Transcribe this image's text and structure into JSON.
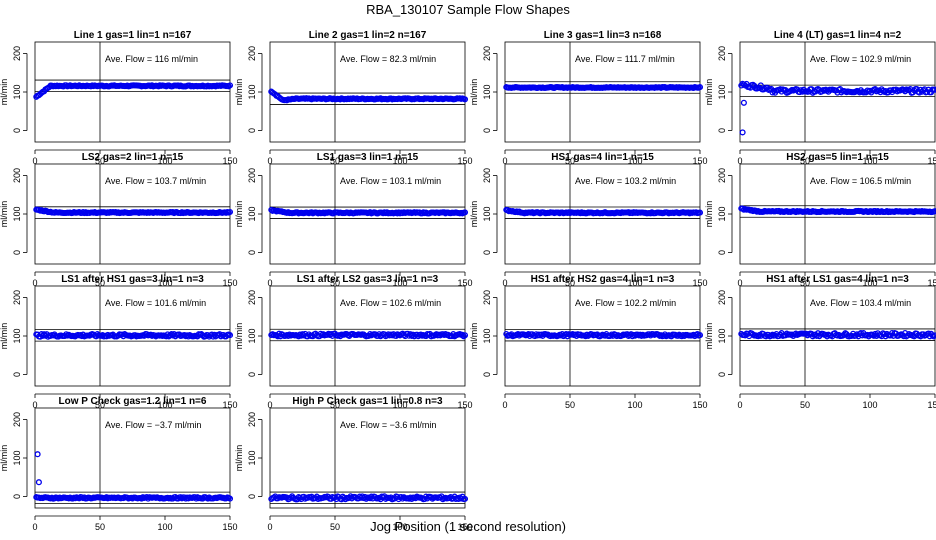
{
  "title": "RBA_130107  Sample Flow Shapes",
  "footer": "Jog Position (1 second resolution)",
  "colors": {
    "points": "#0000ee",
    "axis": "#000000"
  },
  "chart_data": {
    "type": "scatter",
    "xlim": [
      0,
      150
    ],
    "ylim": [
      -30,
      230
    ],
    "x_ticks": [
      0,
      50,
      100,
      150
    ],
    "y_ticks": [
      0,
      100,
      200
    ],
    "ylabel": "ml/min",
    "vline_x": 50,
    "band": 15,
    "panels": [
      {
        "title": "Line 1 gas=1 lin=1 n=167",
        "avg": 116,
        "label": "Ave. Flow =  116  ml/min",
        "shape": "rise",
        "start": 85,
        "noise": 1.5
      },
      {
        "title": "Line 2 gas=1 lin=2 n=167",
        "avg": 82.3,
        "label": "Ave. Flow =  82.3  ml/min",
        "shape": "dip",
        "start": 105,
        "noise": 1.5
      },
      {
        "title": "Line 3 gas=1 lin=3 n=168",
        "avg": 111.7,
        "label": "Ave. Flow =  111.7  ml/min",
        "shape": "flat",
        "noise": 1.2
      },
      {
        "title": "Line 4 (LT) gas=1 lin=4 n=2",
        "avg": 102.9,
        "label": "Ave. Flow =  102.9  ml/min",
        "shape": "spike",
        "outliers": [
          [
            2,
            -5
          ],
          [
            3,
            72
          ]
        ],
        "start": 120,
        "noise": 5
      },
      {
        "title": "LS2 gas=2 lin=1 n=15",
        "avg": 103.7,
        "label": "Ave. Flow =  103.7  ml/min",
        "shape": "settle",
        "start": 112,
        "noise": 1.5
      },
      {
        "title": "LS1 gas=3 lin=1 n=15",
        "avg": 103.1,
        "label": "Ave. Flow =  103.1  ml/min",
        "shape": "settle",
        "start": 110,
        "noise": 1.5
      },
      {
        "title": "HS1 gas=4 lin=1 n=15",
        "avg": 103.2,
        "label": "Ave. Flow =  103.2  ml/min",
        "shape": "settle",
        "start": 110,
        "noise": 1.5
      },
      {
        "title": "HS2 gas=5 lin=1 n=15",
        "avg": 106.5,
        "label": "Ave. Flow =  106.5  ml/min",
        "shape": "settle",
        "start": 114,
        "noise": 1.5
      },
      {
        "title": "LS1 after HS1 gas=3 lin=1 n=3",
        "avg": 101.6,
        "label": "Ave. Flow =  101.6  ml/min",
        "shape": "flat",
        "noise": 3.5
      },
      {
        "title": "LS1 after LS2 gas=3 lin=1 n=3",
        "avg": 102.6,
        "label": "Ave. Flow =  102.6  ml/min",
        "shape": "flat",
        "noise": 3.5
      },
      {
        "title": "HS1 after HS2 gas=4 lin=1 n=3",
        "avg": 102.2,
        "label": "Ave. Flow =  102.2  ml/min",
        "shape": "flat",
        "noise": 3
      },
      {
        "title": "HS1 after LS1 gas=4 lin=1 n=3",
        "avg": 103.4,
        "label": "Ave. Flow =  103.4  ml/min",
        "shape": "flat",
        "noise": 4.5
      },
      {
        "title": "Low P Check gas=1.2 lin=1 n=6",
        "avg": -3.7,
        "label": "Ave. Flow =  −3.7  ml/min",
        "shape": "flat",
        "outliers": [
          [
            2,
            110
          ],
          [
            3,
            37
          ]
        ],
        "noise": 2
      },
      {
        "title": "High P Check gas=1 lin=0.8 n=3",
        "avg": -3.6,
        "label": "Ave. Flow =  −3.6  ml/min",
        "shape": "flat",
        "noise": 4
      }
    ]
  }
}
